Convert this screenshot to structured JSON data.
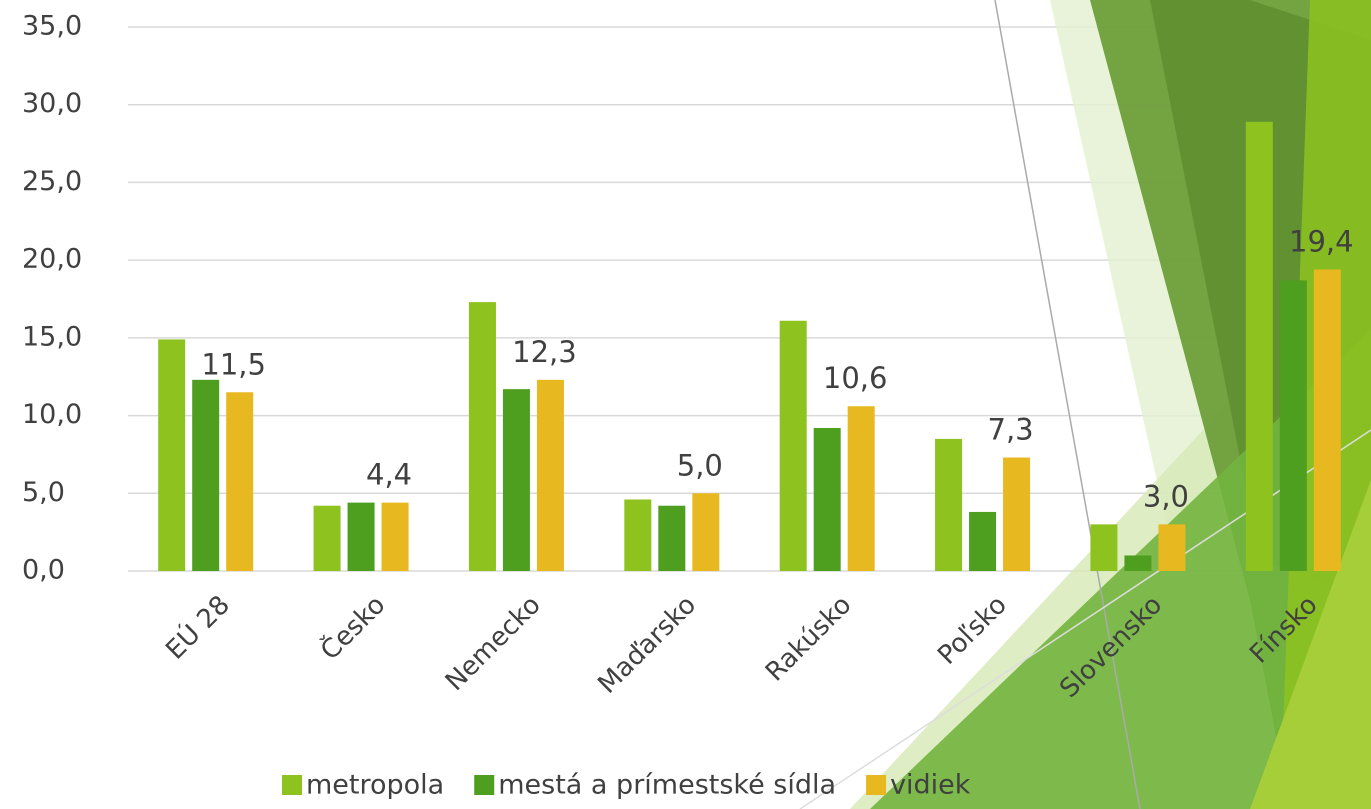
{
  "chart_data": {
    "type": "bar",
    "categories": [
      "EÚ 28",
      "Česko",
      "Nemecko",
      "Maďarsko",
      "Rakúsko",
      "Poľsko",
      "Slovensko",
      "Fínsko"
    ],
    "series": [
      {
        "name": "metropola",
        "color": "#8dc21f",
        "values": [
          14.9,
          4.2,
          17.3,
          4.6,
          16.1,
          8.5,
          3.0,
          28.9
        ]
      },
      {
        "name": "mestá a prímestské sídla",
        "color": "#4e9e20",
        "values": [
          12.3,
          4.4,
          11.7,
          4.2,
          9.2,
          3.8,
          1.0,
          18.7
        ]
      },
      {
        "name": "vidiek",
        "color": "#e8b820",
        "values": [
          11.5,
          4.4,
          12.3,
          5.0,
          10.6,
          7.3,
          3.0,
          19.4
        ],
        "value_labels": [
          "11,5",
          "4,4",
          "12,3",
          "5,0",
          "10,6",
          "7,3",
          "3,0",
          "19,4"
        ]
      }
    ],
    "ylim": [
      0,
      35
    ],
    "yticks": [
      {
        "value": 0,
        "label": "0,0"
      },
      {
        "value": 5,
        "label": "5,0"
      },
      {
        "value": 10,
        "label": "10,0"
      },
      {
        "value": 15,
        "label": "15,0"
      },
      {
        "value": 20,
        "label": "20,0"
      },
      {
        "value": 25,
        "label": "25,0"
      },
      {
        "value": 30,
        "label": "30,0"
      },
      {
        "value": 35,
        "label": "35,0"
      }
    ],
    "grid": true,
    "legend": "bottom"
  }
}
